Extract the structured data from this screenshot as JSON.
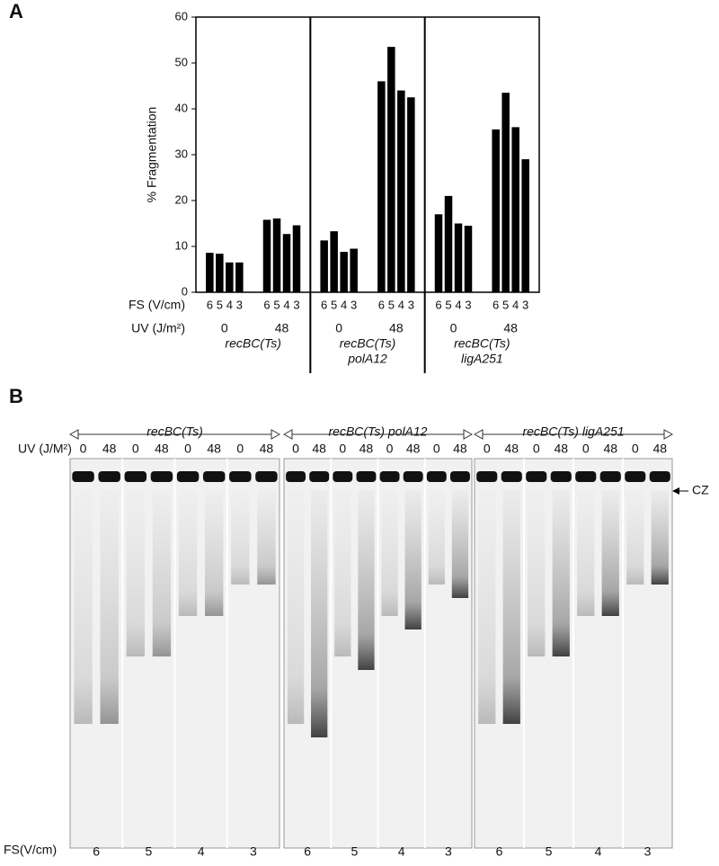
{
  "chart_data": {
    "type": "bar",
    "panel_label": "A",
    "y_label": "% Fragmentation",
    "color": "#000000",
    "ylim": [
      0,
      60
    ],
    "yticks": [
      0,
      10,
      20,
      30,
      40,
      50,
      60
    ],
    "fs_row_label": "FS (V/cm)",
    "uv_row_label": "UV (J/m²)",
    "categories": [
      "6",
      "5",
      "4",
      "3",
      "6",
      "5",
      "4",
      "3",
      "6",
      "5",
      "4",
      "3",
      "6",
      "5",
      "4",
      "3",
      "6",
      "5",
      "4",
      "3",
      "6",
      "5",
      "4",
      "3"
    ],
    "uv_labels": [
      "0",
      "48",
      "0",
      "48",
      "0",
      "48"
    ],
    "strains": [
      [
        "recBC(Ts)"
      ],
      [
        "recBC(Ts)",
        "polA12"
      ],
      [
        "recBC(Ts)",
        "ligA251"
      ]
    ],
    "values": [
      8.6,
      8.4,
      6.5,
      6.5,
      15.8,
      16.1,
      12.7,
      14.6,
      11.3,
      13.3,
      8.8,
      9.5,
      46,
      53.5,
      44,
      42.5,
      17,
      21,
      15,
      14.5,
      35.5,
      43.5,
      36,
      29
    ]
  },
  "gel": {
    "panel_label": "B",
    "uv_row_label": "UV (J/M²)",
    "headers": [
      "recBC(Ts)",
      "recBC(Ts) polA12",
      "recBC(Ts) ligA251"
    ],
    "lane_labels": [
      "0",
      "48",
      "0",
      "48",
      "0",
      "48",
      "0",
      "48",
      "0",
      "48",
      "0",
      "48",
      "0",
      "48",
      "0",
      "48",
      "0",
      "48",
      "0",
      "48",
      "0",
      "48",
      "0",
      "48"
    ],
    "marker": "CZ",
    "fs_row_label": "FS(V/cm)",
    "fs_labels": [
      "6",
      "5",
      "4",
      "3",
      "6",
      "5",
      "4",
      "3",
      "6",
      "5",
      "4",
      "3"
    ]
  }
}
